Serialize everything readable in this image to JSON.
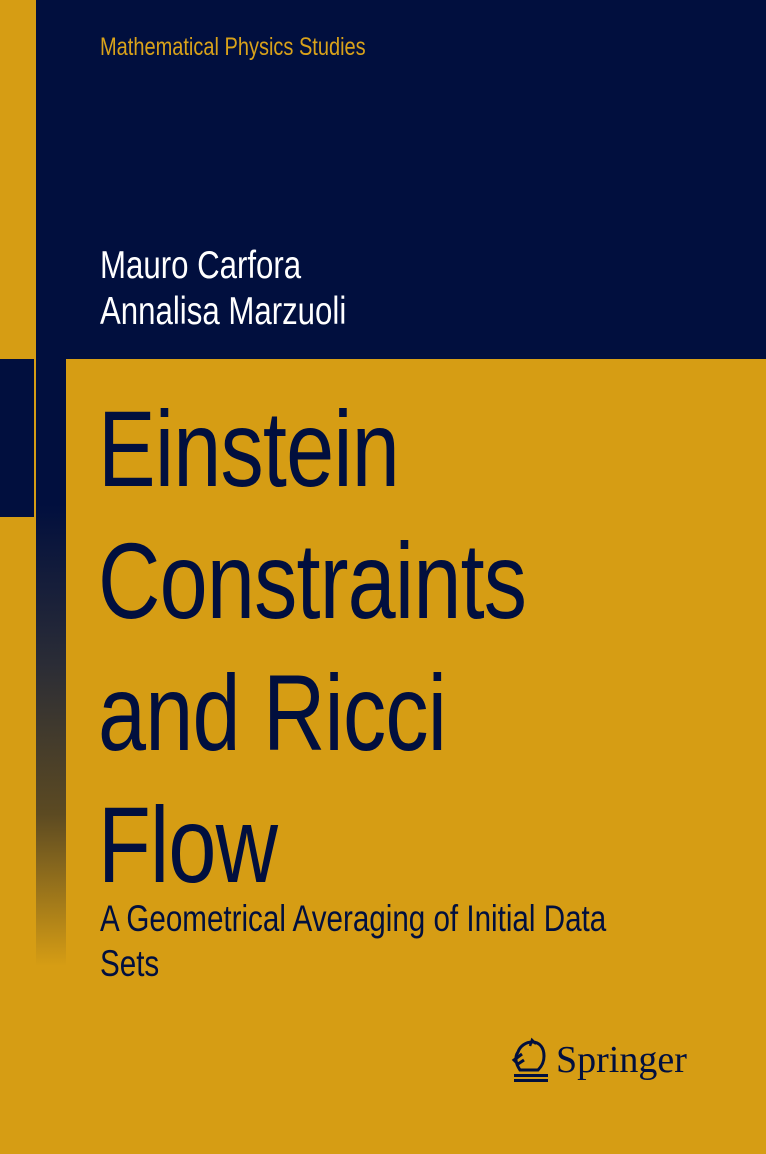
{
  "series": "Mathematical Physics Studies",
  "authors": [
    "Mauro Carfora",
    "Annalisa Marzuoli"
  ],
  "title_lines": [
    "Einstein",
    "Constraints",
    "and Ricci",
    "Flow"
  ],
  "subtitle_lines": [
    "A Geometrical Averaging of Initial Data",
    "Sets"
  ],
  "publisher": {
    "name": "Springer",
    "icon": "springer-knight-icon"
  },
  "colors": {
    "background": "#d69d14",
    "navy": "#010f3e",
    "series_text": "#d9a21a"
  }
}
